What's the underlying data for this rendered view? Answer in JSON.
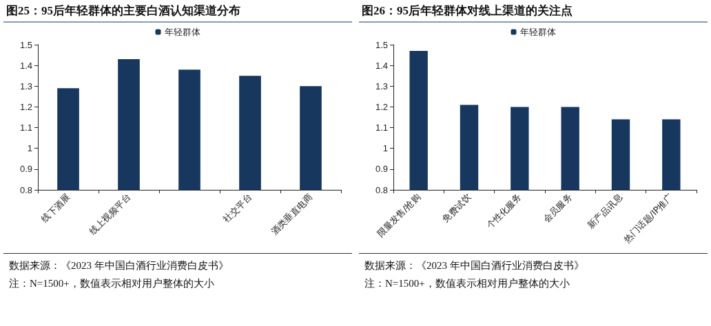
{
  "chart_data": [
    {
      "type": "bar",
      "title": "图25：95后年轻群体的主要白酒认知渠道分布",
      "categories": [
        "线下酒展",
        "线上视频平台",
        null,
        "社交平台",
        "酒类垂直电商"
      ],
      "series": [
        {
          "name": "年轻群体",
          "color": "#17375e",
          "values": [
            1.29,
            1.43,
            1.38,
            1.35,
            1.3
          ]
        }
      ],
      "ylim": [
        0.8,
        1.5
      ],
      "yticks": [
        0.8,
        0.9,
        1,
        1.1,
        1.2,
        1.3,
        1.4,
        1.5
      ],
      "grid": false,
      "legend": "top",
      "annotations": [
        "数据来源：《2023 年中国白酒行业消费白皮书》",
        "注：N=1500+，数值表示相对用户整体的大小"
      ]
    },
    {
      "type": "bar",
      "title": "图26：95后年轻群体对线上渠道的关注点",
      "categories": [
        "限量发售/抢购",
        "免费试饮",
        "个性化服务",
        "会员服务",
        "新产品讯息",
        "热门话题/IP推广"
      ],
      "series": [
        {
          "name": "年轻群体",
          "color": "#17375e",
          "values": [
            1.47,
            1.21,
            1.2,
            1.2,
            1.14,
            1.14
          ]
        }
      ],
      "ylim": [
        0.8,
        1.5
      ],
      "yticks": [
        0.8,
        0.9,
        1,
        1.1,
        1.2,
        1.3,
        1.4,
        1.5
      ],
      "grid": false,
      "legend": "top",
      "annotations": [
        "数据来源：《2023 年中国白酒行业消费白皮书》",
        "注：N=1500+，数值表示相对用户整体的大小"
      ]
    }
  ]
}
